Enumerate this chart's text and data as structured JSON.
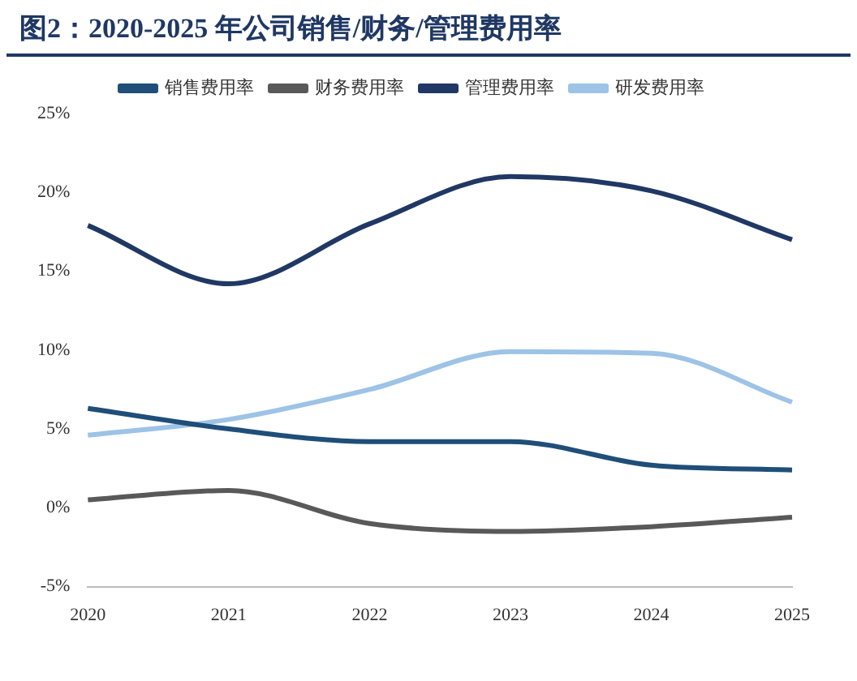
{
  "chart_data": {
    "type": "line",
    "title": "图2：2020-2025 年公司销售/财务/管理费用率",
    "categories": [
      "2020",
      "2021",
      "2022",
      "2023",
      "2024",
      "2025"
    ],
    "series": [
      {
        "name": "销售费用率",
        "color": "#1f4e79",
        "values": [
          6.3,
          5.0,
          4.2,
          4.2,
          2.7,
          2.4
        ]
      },
      {
        "name": "财务费用率",
        "color": "#595959",
        "values": [
          0.5,
          1.1,
          -1.0,
          -1.5,
          -1.2,
          -0.6
        ]
      },
      {
        "name": "管理费用率",
        "color": "#203864",
        "values": [
          17.9,
          14.2,
          18.0,
          21.0,
          20.1,
          17.0
        ]
      },
      {
        "name": "研发费用率",
        "color": "#9dc3e6",
        "values": [
          4.6,
          5.6,
          7.5,
          9.9,
          9.8,
          6.7
        ]
      }
    ],
    "ylim": [
      -5,
      25
    ],
    "yticks": [
      {
        "value": -5,
        "label": "-5%"
      },
      {
        "value": 0,
        "label": "0%"
      },
      {
        "value": 5,
        "label": "5%"
      },
      {
        "value": 10,
        "label": "10%"
      },
      {
        "value": 15,
        "label": "15%"
      },
      {
        "value": 20,
        "label": "20%"
      },
      {
        "value": 25,
        "label": "25%"
      }
    ],
    "grid": false,
    "legend": "top",
    "marker": "none",
    "line_style": "solid"
  }
}
